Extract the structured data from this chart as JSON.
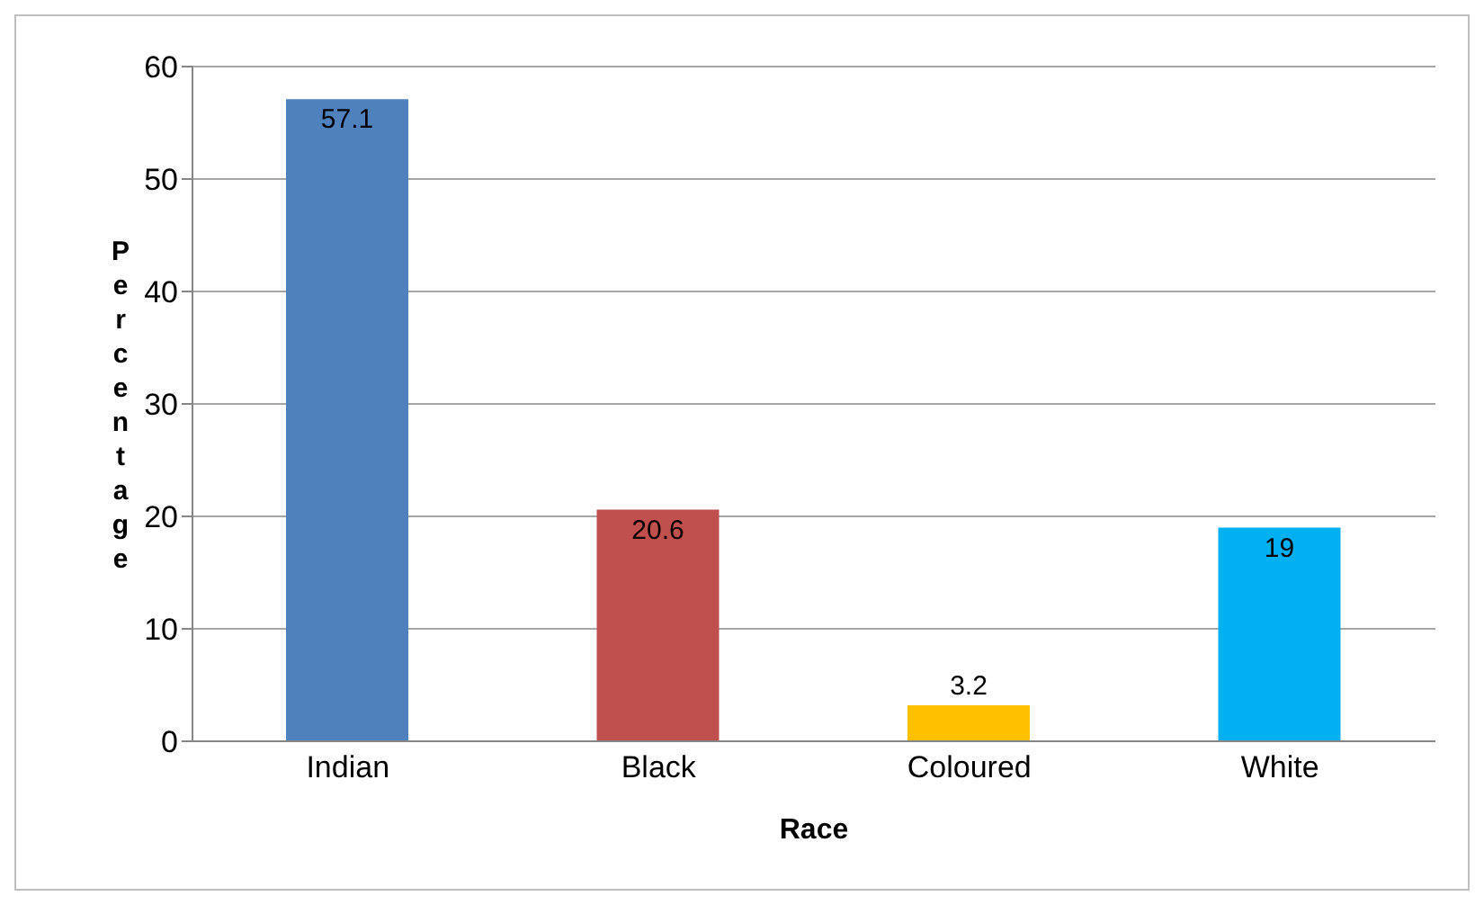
{
  "chart_data": {
    "type": "bar",
    "xlabel": "Race",
    "ylabel": "Percentage",
    "categories": [
      "Indian",
      "Black",
      "Coloured",
      "White"
    ],
    "values": [
      57.1,
      20.6,
      3.2,
      19
    ],
    "colors": [
      "#4f81bd",
      "#c0504d",
      "#ffc000",
      "#00b0f0"
    ],
    "ylim": [
      0,
      60
    ],
    "yticks": [
      0,
      10,
      20,
      30,
      40,
      50,
      60
    ],
    "grid": "y",
    "data_labels": true
  }
}
